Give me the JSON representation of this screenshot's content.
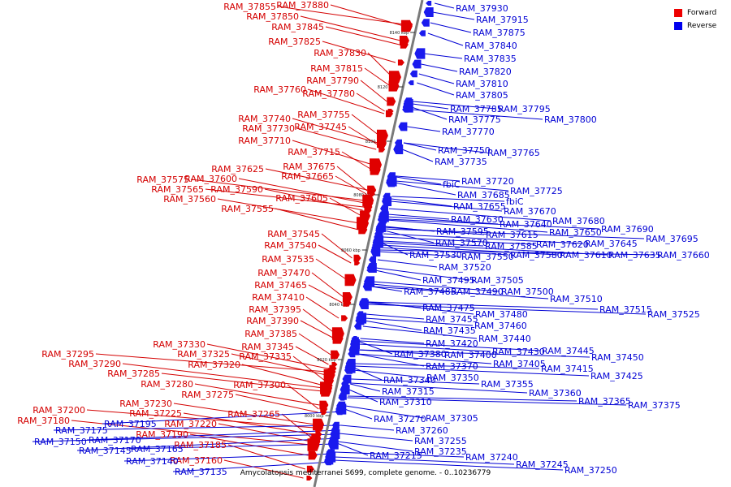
{
  "legend": {
    "forward_label": "Forward",
    "reverse_label": "Reverse",
    "forward_color": "#ee0000",
    "reverse_color": "#0000ee"
  },
  "caption": "Amycolatopsis mediterranei S699, complete genome. - 0..10236779",
  "axis_ticks": [
    "8000 kbp",
    "8020 kbp",
    "8040 kbp",
    "8060 kbp",
    "8080 kbp",
    "8100 kbp",
    "8120 kbp",
    "8140 kbp"
  ],
  "forward_labels": [
    "RAM_37855",
    "RAM_37880",
    "RAM_37850",
    "RAM_37845",
    "RAM_37825",
    "RAM_37830",
    "RAM_37815",
    "RAM_37790",
    "RAM_37760",
    "RAM_37780",
    "RAM_37755",
    "RAM_37740",
    "RAM_37745",
    "RAM_37730",
    "RAM_37710",
    "RAM_37715",
    "RAM_37625",
    "RAM_37675",
    "RAM_37665",
    "RAM_37575",
    "RAM_37600",
    "RAM_37565",
    "RAM_37590",
    "RAM_37560",
    "RAM_37605",
    "RAM_37555",
    "RAM_37545",
    "RAM_37540",
    "RAM_37535",
    "RAM_37470",
    "RAM_37465",
    "RAM_37410",
    "RAM_37395",
    "RAM_37390",
    "RAM_37385",
    "RAM_37330",
    "RAM_37345",
    "RAM_37325",
    "RAM_37335",
    "RAM_37295",
    "RAM_37320",
    "RAM_37290",
    "RAM_37285",
    "RAM_37280",
    "RAM_37300",
    "RAM_37275",
    "RAM_37230",
    "RAM_37265",
    "RAM_37200",
    "RAM_37225",
    "RAM_37180",
    "RAM_37220",
    "RAM_37190",
    "RAM_37185",
    "RAM_37160"
  ],
  "reverse_labels": [
    "RAM_37930",
    "RAM_37915",
    "RAM_37875",
    "RAM_37840",
    "RAM_37835",
    "RAM_37820",
    "RAM_37810",
    "RAM_37805",
    "RAM_37785",
    "RAM_37795",
    "RAM_37800",
    "RAM_37775",
    "RAM_37770",
    "RAM_37750",
    "RAM_37765",
    "RAM_37735",
    "RAM_37720",
    "fbiC",
    "RAM_37725",
    "RAM_37685",
    "fbiC",
    "RAM_37655",
    "RAM_37670",
    "RAM_37680",
    "RAM_37630",
    "RAM_37640",
    "RAM_37690",
    "RAM_37650",
    "RAM_37595",
    "RAM_37615",
    "RAM_37695",
    "RAM_37570",
    "RAM_37585",
    "RAM_37620",
    "RAM_37645",
    "RAM_37530",
    "RAM_37550",
    "RAM_37580",
    "RAM_37610",
    "RAM_37635",
    "RAM_37660",
    "RAM_37520",
    "RAM_37495",
    "RAM_37505",
    "RAM_37485",
    "RAM_37490",
    "RAM_37500",
    "RAM_37510",
    "RAM_37475",
    "RAM_37515",
    "RAM_37525",
    "RAM_37480",
    "RAM_37455",
    "RAM_37460",
    "RAM_37435",
    "RAM_37440",
    "RAM_37420",
    "RAM_37430",
    "RAM_37445",
    "RAM_37380",
    "RAM_37400",
    "RAM_37450",
    "RAM_37405",
    "RAM_37370",
    "RAM_37415",
    "RAM_37350",
    "RAM_37425",
    "RAM_37340",
    "RAM_37355",
    "RAM_37315",
    "RAM_37360",
    "RAM_37310",
    "RAM_37365",
    "RAM_37375",
    "RAM_37270",
    "RAM_37305",
    "RAM_37260",
    "RAM_37255",
    "RAM_37235",
    "RAM_37215",
    "RAM_37240",
    "RAM_37245",
    "RAM_37250",
    "RAM_37195",
    "RAM_37175",
    "RAM_37150",
    "RAM_37170",
    "RAM_37145",
    "RAM_37165",
    "RAM_37140",
    "RAM_37135"
  ]
}
